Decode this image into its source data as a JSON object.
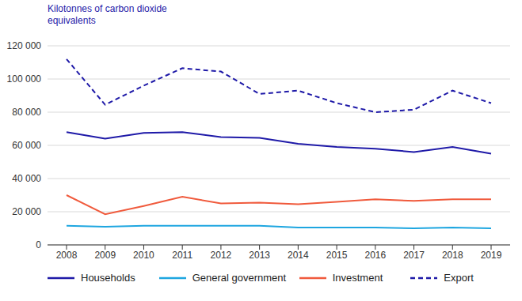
{
  "chart_data": {
    "type": "line",
    "ylabel": "Kilotonnes of carbon dioxide equivalents",
    "categories": [
      "2008",
      "2009",
      "2010",
      "2011",
      "2012",
      "2013",
      "2014",
      "2015",
      "2016",
      "2017",
      "2018",
      "2019"
    ],
    "series": [
      {
        "name": "Households",
        "color": "#1f1aa8",
        "line_style": "solid",
        "values": [
          68000,
          64000,
          67500,
          68000,
          65000,
          64500,
          61000,
          59000,
          58000,
          56000,
          59000,
          55000
        ]
      },
      {
        "name": "General government",
        "color": "#1ea6e0",
        "line_style": "solid",
        "values": [
          11500,
          11000,
          11500,
          11500,
          11500,
          11500,
          10500,
          10500,
          10500,
          10000,
          10500,
          10000
        ]
      },
      {
        "name": "Investment",
        "color": "#f05a3c",
        "line_style": "solid",
        "values": [
          30000,
          18500,
          23500,
          29000,
          25000,
          25500,
          24500,
          26000,
          27500,
          26500,
          27500,
          27500
        ]
      },
      {
        "name": "Export",
        "color": "#1f1aa8",
        "line_style": "dashed",
        "values": [
          112000,
          84500,
          96000,
          106500,
          104500,
          91000,
          93000,
          85500,
          80000,
          81500,
          93000,
          85500
        ]
      }
    ],
    "ylim": [
      0,
      120000
    ],
    "yticks": [
      0,
      {
        "value": 20000,
        "label": "20 000"
      },
      {
        "value": 40000,
        "label": "40 000"
      },
      {
        "value": 60000,
        "label": "60 000"
      },
      {
        "value": 80000,
        "label": "80 000"
      },
      {
        "value": 100000,
        "label": "100 000"
      },
      {
        "value": 120000,
        "label": "120 000"
      }
    ],
    "grid": true,
    "legend": "bottom"
  }
}
